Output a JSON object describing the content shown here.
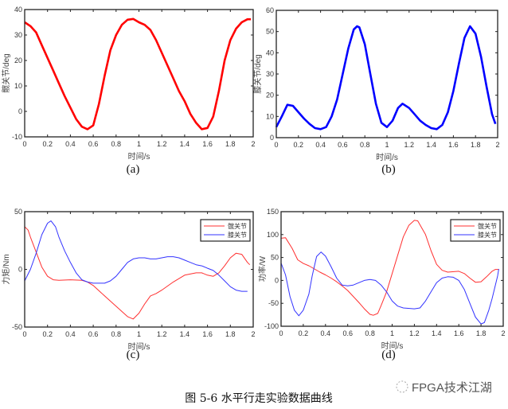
{
  "caption": "图 5-6 水平行走实验数据曲线",
  "watermark": "FPGA技术江湖",
  "chart_data": [
    {
      "id": "a",
      "type": "line",
      "sublabel": "(a)",
      "xlabel": "时间/s",
      "ylabel": "髋关节/deg",
      "xlim": [
        0,
        2
      ],
      "ylim": [
        -10,
        40
      ],
      "xticks": [
        0,
        0.2,
        0.4,
        0.6,
        0.8,
        1,
        1.2,
        1.4,
        1.6,
        1.8,
        2
      ],
      "yticks": [
        -10,
        0,
        10,
        20,
        30,
        40
      ],
      "grid": false,
      "legend": null,
      "linewidth": "thick",
      "series": [
        {
          "color": "#ff0000",
          "x": [
            0,
            0.05,
            0.1,
            0.15,
            0.2,
            0.25,
            0.3,
            0.35,
            0.4,
            0.45,
            0.5,
            0.55,
            0.6,
            0.65,
            0.7,
            0.75,
            0.8,
            0.85,
            0.9,
            0.95,
            1.0,
            1.05,
            1.1,
            1.15,
            1.2,
            1.25,
            1.3,
            1.35,
            1.4,
            1.45,
            1.5,
            1.55,
            1.6,
            1.65,
            1.7,
            1.75,
            1.8,
            1.85,
            1.9,
            1.95,
            1.98
          ],
          "y": [
            35,
            33.5,
            31,
            26,
            21,
            16,
            11,
            6,
            1.5,
            -3,
            -6,
            -7,
            -5.5,
            3,
            14,
            24,
            30,
            34,
            36,
            36.3,
            35,
            34,
            32,
            28,
            23,
            18,
            13,
            8,
            4,
            -1,
            -4.5,
            -7,
            -6.5,
            -2,
            8,
            20,
            28,
            32.5,
            35,
            36.2,
            36.2
          ]
        }
      ]
    },
    {
      "id": "b",
      "type": "line",
      "sublabel": "(b)",
      "xlabel": "时间/s",
      "ylabel": "膝关节/deg",
      "xlim": [
        0,
        2
      ],
      "ylim": [
        0,
        60
      ],
      "xticks": [
        0,
        0.2,
        0.4,
        0.6,
        0.8,
        1,
        1.2,
        1.4,
        1.6,
        1.8,
        2
      ],
      "yticks": [
        0,
        10,
        20,
        30,
        40,
        50,
        60
      ],
      "grid": false,
      "legend": null,
      "linewidth": "thick",
      "series": [
        {
          "color": "#0000ff",
          "x": [
            0,
            0.05,
            0.1,
            0.15,
            0.2,
            0.25,
            0.3,
            0.35,
            0.4,
            0.45,
            0.5,
            0.55,
            0.6,
            0.65,
            0.7,
            0.73,
            0.75,
            0.8,
            0.85,
            0.9,
            0.95,
            1.0,
            1.05,
            1.1,
            1.14,
            1.2,
            1.25,
            1.3,
            1.35,
            1.4,
            1.45,
            1.5,
            1.55,
            1.6,
            1.65,
            1.7,
            1.75,
            1.8,
            1.85,
            1.9,
            1.95,
            1.98
          ],
          "y": [
            5,
            10,
            15.5,
            15,
            12,
            9,
            6.5,
            4.5,
            4,
            5,
            10,
            18,
            30,
            42,
            51,
            52.5,
            52,
            44,
            30,
            16,
            7,
            5,
            8,
            14,
            16,
            14,
            11,
            8,
            6,
            4.5,
            4,
            6,
            12,
            22,
            35,
            47,
            52.5,
            49,
            38,
            24,
            11,
            6.5
          ]
        }
      ]
    },
    {
      "id": "c",
      "type": "line",
      "sublabel": "(c)",
      "xlabel": "时间/s",
      "ylabel": "力矩/Nm",
      "xlim": [
        0,
        2
      ],
      "ylim": [
        -50,
        50
      ],
      "xticks": [
        0,
        0.2,
        0.4,
        0.6,
        0.8,
        1,
        1.2,
        1.4,
        1.6,
        1.8,
        2
      ],
      "yticks": [
        -50,
        0,
        50
      ],
      "grid": false,
      "legend": "top-right",
      "linewidth": "thin",
      "series": [
        {
          "name": "髋关节",
          "color": "#ff3030",
          "x": [
            0,
            0.03,
            0.05,
            0.1,
            0.15,
            0.2,
            0.25,
            0.3,
            0.4,
            0.5,
            0.55,
            0.6,
            0.7,
            0.8,
            0.9,
            0.95,
            1.0,
            1.05,
            1.1,
            1.15,
            1.2,
            1.3,
            1.4,
            1.5,
            1.55,
            1.6,
            1.65,
            1.7,
            1.75,
            1.8,
            1.85,
            1.9,
            1.95,
            1.97
          ],
          "y": [
            37,
            34,
            28,
            15,
            2,
            -6,
            -9,
            -9.5,
            -9,
            -9.5,
            -11,
            -14,
            -23,
            -32,
            -41,
            -43,
            -38,
            -30,
            -23,
            -21,
            -18,
            -11,
            -5,
            -3,
            -3,
            -5,
            -6,
            -3,
            3,
            10,
            14,
            13,
            6,
            4
          ]
        },
        {
          "name": "膝关节",
          "color": "#3333ff",
          "x": [
            0,
            0.05,
            0.1,
            0.15,
            0.2,
            0.23,
            0.27,
            0.3,
            0.35,
            0.4,
            0.45,
            0.5,
            0.55,
            0.6,
            0.65,
            0.7,
            0.75,
            0.8,
            0.85,
            0.9,
            0.95,
            1.0,
            1.05,
            1.1,
            1.15,
            1.2,
            1.25,
            1.3,
            1.35,
            1.4,
            1.45,
            1.5,
            1.55,
            1.6,
            1.65,
            1.7,
            1.75,
            1.8,
            1.85,
            1.9,
            1.95
          ],
          "y": [
            -10,
            0,
            14,
            30,
            40,
            42,
            37,
            28,
            16,
            6,
            -3,
            -9,
            -11,
            -12,
            -12,
            -12,
            -10,
            -6,
            0,
            6,
            9,
            10,
            10,
            9,
            9,
            10,
            11,
            11,
            10,
            8,
            6,
            4,
            3,
            1,
            -1,
            -5,
            -10,
            -15,
            -18,
            -19,
            -19
          ]
        }
      ]
    },
    {
      "id": "d",
      "type": "line",
      "sublabel": "(d)",
      "xlabel": "时间/s",
      "ylabel": "功率/W",
      "xlim": [
        0,
        2
      ],
      "ylim": [
        -100,
        150
      ],
      "xticks": [
        0,
        0.2,
        0.4,
        0.6,
        0.8,
        1,
        1.2,
        1.4,
        1.6,
        1.8,
        2
      ],
      "yticks": [
        -100,
        -50,
        0,
        50,
        100,
        150
      ],
      "grid": false,
      "legend": "top-right",
      "linewidth": "thin",
      "series": [
        {
          "name": "髋关节",
          "color": "#ff3030",
          "x": [
            0,
            0.04,
            0.1,
            0.15,
            0.2,
            0.25,
            0.3,
            0.35,
            0.4,
            0.45,
            0.5,
            0.55,
            0.6,
            0.65,
            0.7,
            0.75,
            0.8,
            0.83,
            0.87,
            0.9,
            0.95,
            1.0,
            1.05,
            1.1,
            1.15,
            1.2,
            1.23,
            1.3,
            1.35,
            1.4,
            1.45,
            1.5,
            1.6,
            1.65,
            1.7,
            1.75,
            1.8,
            1.85,
            1.9,
            1.93,
            1.96
          ],
          "y": [
            92,
            93,
            70,
            45,
            37,
            32,
            25,
            18,
            12,
            5,
            -3,
            -12,
            -22,
            -35,
            -48,
            -62,
            -74,
            -76,
            -72,
            -55,
            -25,
            15,
            55,
            95,
            120,
            131,
            130,
            100,
            65,
            35,
            22,
            18,
            20,
            15,
            5,
            -4,
            -3,
            8,
            20,
            24,
            24
          ]
        },
        {
          "name": "膝关节",
          "color": "#3333ff",
          "x": [
            0,
            0.04,
            0.08,
            0.12,
            0.16,
            0.2,
            0.25,
            0.28,
            0.32,
            0.36,
            0.4,
            0.45,
            0.5,
            0.55,
            0.6,
            0.65,
            0.7,
            0.75,
            0.8,
            0.85,
            0.9,
            0.95,
            1.0,
            1.05,
            1.1,
            1.2,
            1.25,
            1.3,
            1.35,
            1.4,
            1.45,
            1.5,
            1.55,
            1.6,
            1.65,
            1.7,
            1.75,
            1.8,
            1.83,
            1.87,
            1.9,
            1.95,
            1.96
          ],
          "y": [
            38,
            12,
            -35,
            -65,
            -77,
            -65,
            -30,
            10,
            52,
            62,
            53,
            30,
            5,
            -10,
            -12,
            -10,
            -5,
            0,
            2,
            0,
            -10,
            -25,
            -45,
            -56,
            -60,
            -62,
            -60,
            -45,
            -25,
            -5,
            5,
            8,
            7,
            0,
            -20,
            -50,
            -80,
            -95,
            -92,
            -65,
            -40,
            10,
            25
          ]
        }
      ]
    }
  ]
}
